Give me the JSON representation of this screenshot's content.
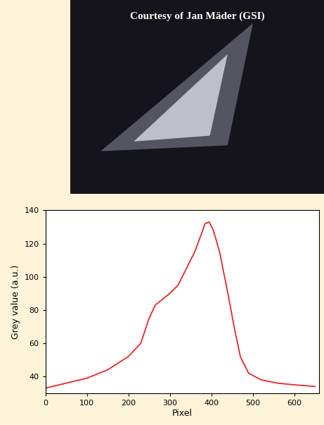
{
  "image": {
    "caption": "Courtesy of Jan Mäder (GSI)"
  },
  "chart_data": {
    "type": "line",
    "x_label": "Pixel",
    "y_label": "Grey value (a.u.)",
    "x": [
      0,
      50,
      100,
      150,
      200,
      230,
      250,
      265,
      280,
      300,
      320,
      340,
      360,
      375,
      385,
      395,
      405,
      420,
      440,
      455,
      470,
      490,
      520,
      560,
      600,
      650
    ],
    "series": [
      {
        "name": "Grey value",
        "color": "#e8282b",
        "values": [
          33,
          36,
          39,
          44,
          52,
          60,
          75,
          83,
          86,
          90,
          95,
          105,
          115,
          125,
          132,
          133,
          128,
          115,
          90,
          70,
          52,
          42,
          38,
          36,
          35,
          34
        ]
      }
    ],
    "xlim": [
      0,
      660
    ],
    "ylim": [
      30,
      140
    ],
    "xticks": [
      0,
      100,
      200,
      300,
      400,
      500,
      600
    ],
    "yticks": [
      40,
      60,
      80,
      100,
      120,
      140
    ],
    "grid": false
  }
}
